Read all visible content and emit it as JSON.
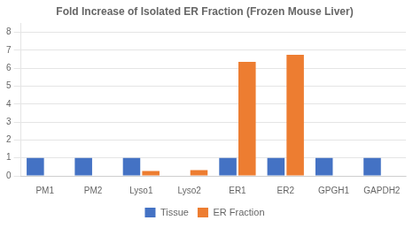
{
  "chart_data": {
    "type": "bar",
    "title": "Fold Increase of Isolated ER Fraction (Frozen Mouse Liver)",
    "categories": [
      "PM1",
      "PM2",
      "Lyso1",
      "Lyso2",
      "ER1",
      "ER2",
      "GPGH1",
      "GAPDH2"
    ],
    "series": [
      {
        "name": "Tissue",
        "color": "#4472C4",
        "values": [
          1.0,
          1.0,
          1.0,
          0.0,
          1.0,
          1.0,
          1.0,
          1.0
        ]
      },
      {
        "name": "ER Fraction",
        "color": "#ED7D31",
        "values": [
          0.0,
          0.0,
          0.27,
          0.32,
          6.35,
          6.75,
          0.0,
          0.0
        ]
      }
    ],
    "ylim": [
      0,
      8.5
    ],
    "yticks": [
      0,
      1,
      2,
      3,
      4,
      5,
      6,
      7,
      8
    ],
    "grid": true,
    "legend": "bottom"
  }
}
